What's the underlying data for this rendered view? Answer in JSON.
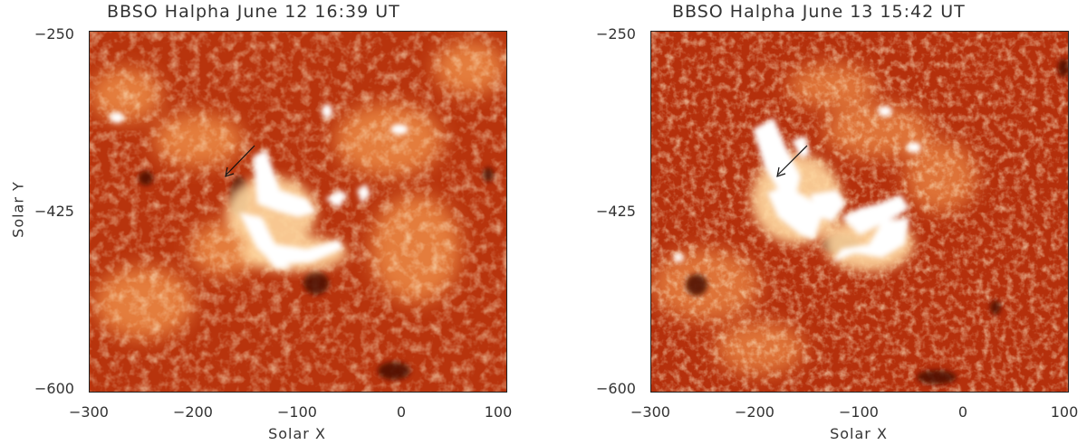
{
  "panels": [
    {
      "title": "BBSO Halpha June 12 16:39 UT",
      "xlabel": "Solar X",
      "ylabel": "Solar Y",
      "xticks": [
        "−300",
        "−200",
        "−100",
        "0",
        "100"
      ],
      "yticks": [
        "−250",
        "−425",
        "−600"
      ]
    },
    {
      "title": "BBSO Halpha June 13 15:42 UT",
      "xlabel": "Solar X",
      "xticks": [
        "−300",
        "−200",
        "−100",
        "0",
        "100"
      ],
      "yticks": [
        "−250",
        "−425",
        "−600"
      ]
    }
  ],
  "colors": {
    "background": "#b8340d",
    "bright": "#ffffff",
    "dark": "#5a1206"
  }
}
